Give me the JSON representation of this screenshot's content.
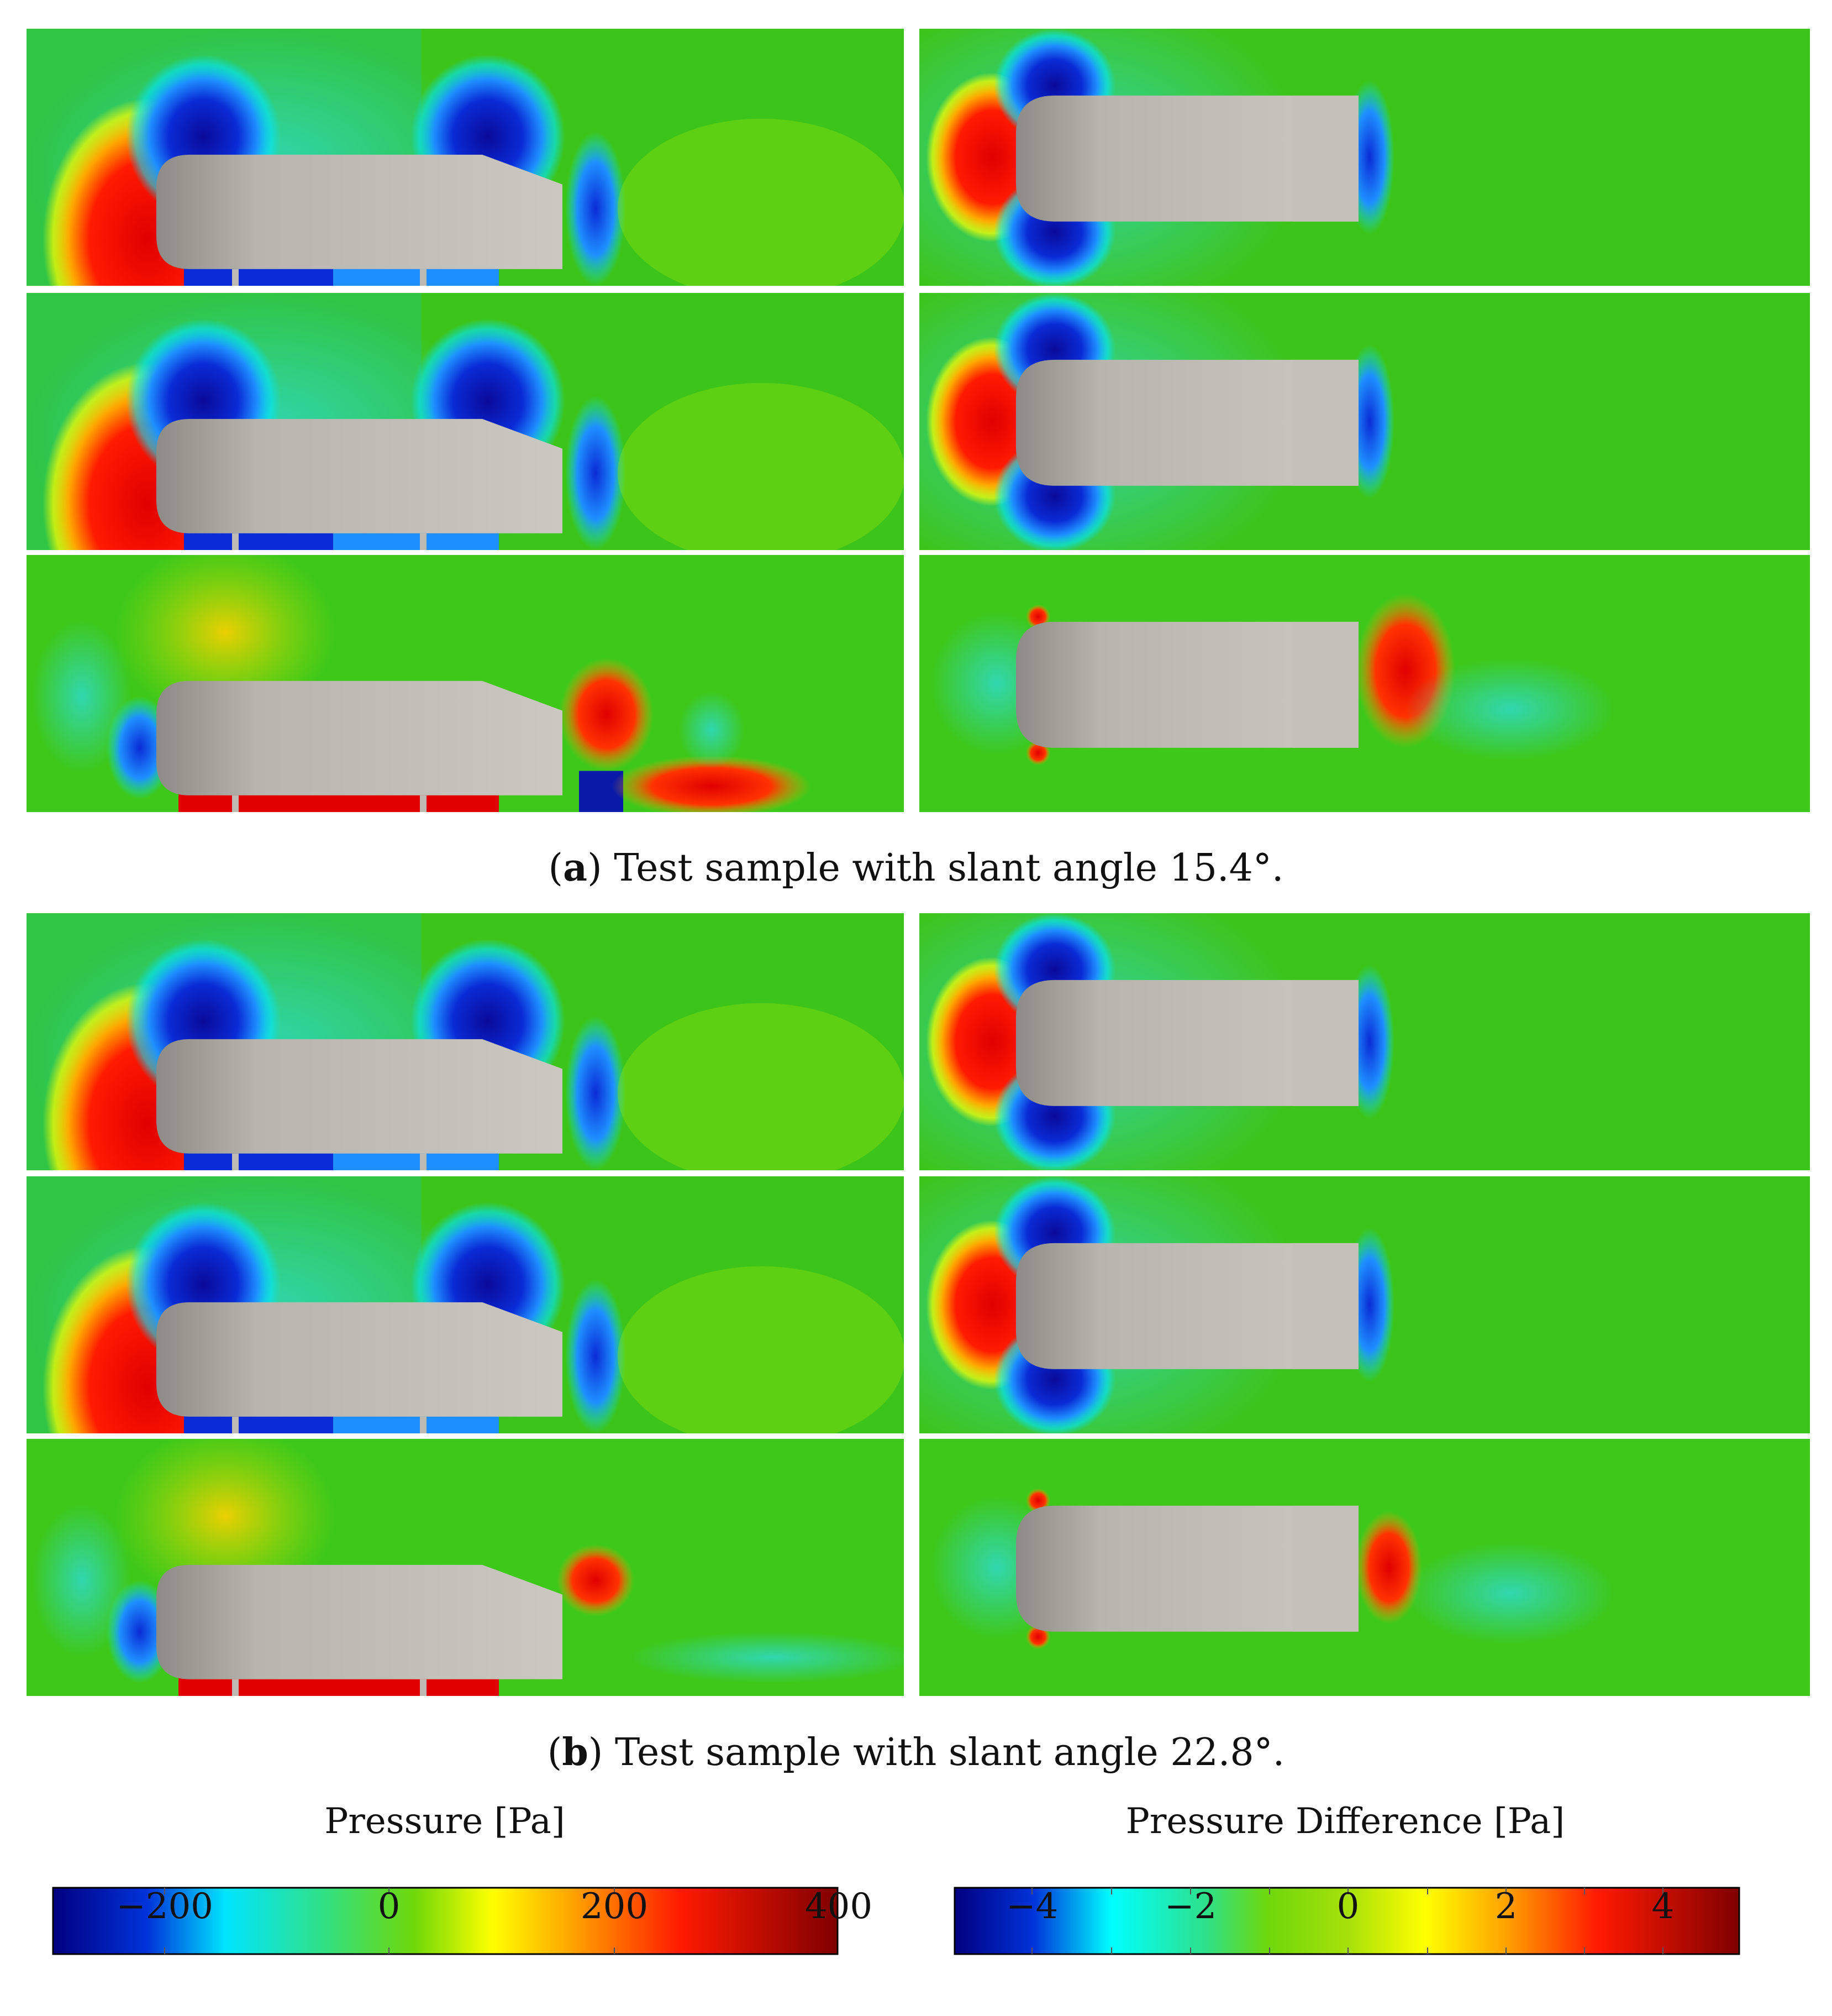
{
  "figure": {
    "subfigures": [
      {
        "letter": "a",
        "caption": "Test sample with slant angle 15.4°."
      },
      {
        "letter": "b",
        "caption": "Test sample with slant angle 22.8°."
      }
    ]
  },
  "colorbars": [
    {
      "title": "Pressure [Pa]",
      "ticks": [
        "−200",
        "0",
        "200",
        "400"
      ]
    },
    {
      "title": "Pressure Difference [Pa]",
      "ticks": [
        "−4",
        "−2",
        "0",
        "2",
        "4"
      ]
    }
  ],
  "colors": {
    "body": "#c9c6bf",
    "field_green": "#2dbf12",
    "colormap": [
      "#00007f",
      "#0a2bd6",
      "#1e8fff",
      "#00ffff",
      "#2ee08a",
      "#5ad80d",
      "#9fe80a",
      "#ffff00",
      "#ffa500",
      "#ff3300",
      "#e00000",
      "#7f0000"
    ]
  }
}
